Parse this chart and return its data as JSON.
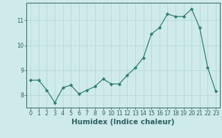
{
  "x": [
    0,
    1,
    2,
    3,
    4,
    5,
    6,
    7,
    8,
    9,
    10,
    11,
    12,
    13,
    14,
    15,
    16,
    17,
    18,
    19,
    20,
    21,
    22,
    23
  ],
  "y": [
    8.6,
    8.6,
    8.2,
    7.7,
    8.3,
    8.4,
    8.05,
    8.2,
    8.35,
    8.65,
    8.45,
    8.45,
    8.8,
    9.1,
    9.5,
    10.45,
    10.7,
    11.25,
    11.15,
    11.15,
    11.45,
    10.7,
    9.1,
    8.15
  ],
  "line_color": "#2e7d6e",
  "marker": "D",
  "marker_size": 2.2,
  "bg_color": "#ceeaea",
  "grid_color": "#b8d8d8",
  "xlabel": "Humidex (Indice chaleur)",
  "xlim": [
    -0.5,
    23.5
  ],
  "ylim": [
    7.5,
    11.7
  ],
  "yticks": [
    8,
    9,
    10,
    11
  ],
  "xticks": [
    0,
    1,
    2,
    3,
    4,
    5,
    6,
    7,
    8,
    9,
    10,
    11,
    12,
    13,
    14,
    15,
    16,
    17,
    18,
    19,
    20,
    21,
    22,
    23
  ],
  "tick_fontsize": 5.8,
  "xlabel_fontsize": 7.5,
  "axis_color": "#2e6060"
}
